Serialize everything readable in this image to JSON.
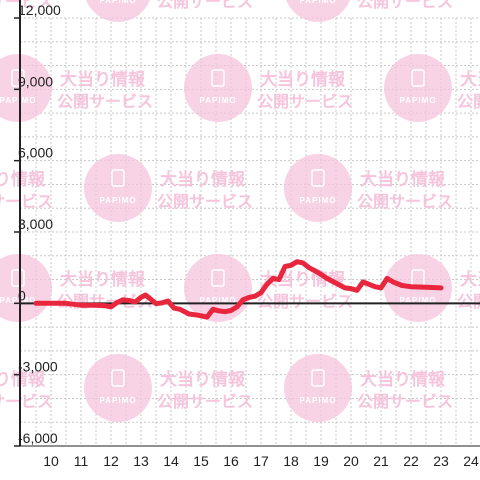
{
  "chart_data": {
    "type": "line",
    "title": "",
    "xlabel": "",
    "ylabel": "",
    "xlim": [
      9.5,
      24.5
    ],
    "ylim": [
      -6000,
      12000
    ],
    "x_ticks": [
      10,
      11,
      12,
      13,
      14,
      15,
      16,
      17,
      18,
      19,
      20,
      21,
      22,
      23,
      24
    ],
    "y_ticks": [
      -6000,
      -3000,
      0,
      3000,
      6000,
      9000,
      12000
    ],
    "y_tick_labels": [
      "-6,000",
      "-3,000",
      "0",
      "3,000",
      "6,000",
      "9,000",
      "12,000"
    ],
    "x_minor_step": 0.5,
    "grid": true,
    "zero_line": true,
    "line_color": "#e8263d",
    "series": [
      {
        "x": [
          9.5,
          10,
          10.5,
          11,
          11.5,
          11.8,
          12,
          12.2,
          12.4,
          12.6,
          12.8,
          13,
          13.15,
          13.3,
          13.5,
          13.7,
          13.9,
          14.1,
          14.3,
          14.6,
          14.9,
          15.2,
          15.4,
          15.6,
          15.8,
          16.0,
          16.2,
          16.4,
          16.6,
          16.8,
          17.0,
          17.2,
          17.4,
          17.6,
          17.8,
          18.0,
          18.2,
          18.4,
          18.6,
          18.9,
          19.2,
          19.5,
          19.8,
          20.0,
          20.2,
          20.4,
          20.6,
          20.8,
          21.0,
          21.2,
          21.4,
          21.7,
          22.0,
          22.5,
          23.0
        ],
        "y": [
          0,
          0,
          0,
          -80,
          -80,
          -100,
          -150,
          30,
          150,
          120,
          50,
          250,
          350,
          200,
          -10,
          20,
          100,
          -200,
          -250,
          -450,
          -500,
          -580,
          -250,
          -320,
          -350,
          -300,
          -150,
          150,
          250,
          300,
          450,
          800,
          1050,
          1000,
          1550,
          1600,
          1750,
          1700,
          1500,
          1300,
          1050,
          850,
          650,
          620,
          550,
          900,
          800,
          700,
          650,
          1050,
          900,
          750,
          700,
          680,
          650
        ]
      }
    ]
  },
  "watermark": {
    "line1": "大当り情報",
    "line2": "公開サービス",
    "brand": "PAPIMO",
    "color": "#f6c4dc"
  }
}
